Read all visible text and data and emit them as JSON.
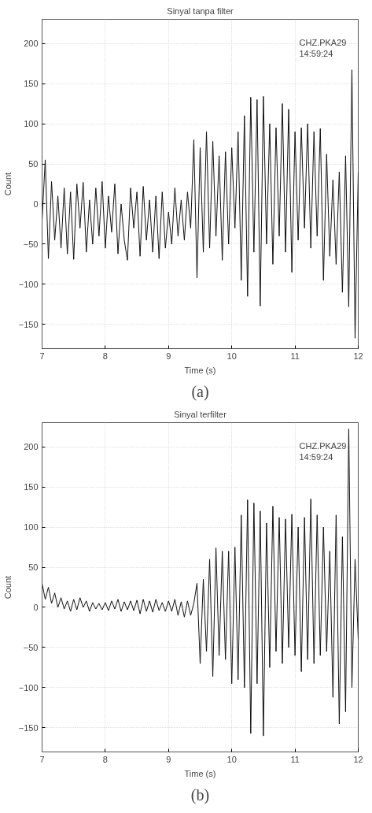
{
  "chart_data": [
    {
      "type": "line",
      "title": "Sinyal tanpa filter",
      "xlabel": "Time (s)",
      "ylabel": "Count",
      "annotations": [
        "CHZ.PKA29\n14:59:24",
        "(a)"
      ],
      "x": [
        7.0,
        7.05,
        7.1,
        7.15,
        7.2,
        7.25,
        7.3,
        7.35,
        7.4,
        7.45,
        7.5,
        7.55,
        7.6,
        7.65,
        7.7,
        7.75,
        7.8,
        7.85,
        7.9,
        7.95,
        8.0,
        8.05,
        8.1,
        8.15,
        8.2,
        8.25,
        8.3,
        8.35,
        8.4,
        8.45,
        8.5,
        8.55,
        8.6,
        8.65,
        8.7,
        8.75,
        8.8,
        8.85,
        8.9,
        8.95,
        9.0,
        9.05,
        9.1,
        9.15,
        9.2,
        9.25,
        9.3,
        9.35,
        9.4,
        9.45,
        9.5,
        9.55,
        9.6,
        9.65,
        9.7,
        9.75,
        9.8,
        9.85,
        9.9,
        9.95,
        10.0,
        10.05,
        10.1,
        10.15,
        10.2,
        10.25,
        10.3,
        10.35,
        10.4,
        10.45,
        10.5,
        10.55,
        10.6,
        10.65,
        10.7,
        10.75,
        10.8,
        10.85,
        10.9,
        10.95,
        11.0,
        11.05,
        11.1,
        11.15,
        11.2,
        11.25,
        11.3,
        11.35,
        11.4,
        11.45,
        11.5,
        11.55,
        11.6,
        11.65,
        11.7,
        11.75,
        11.8,
        11.85,
        11.9,
        11.95,
        12.0
      ],
      "series": [
        {
          "color": "#111111",
          "values": [
            -20,
            55,
            -68,
            28,
            -45,
            10,
            -55,
            20,
            -62,
            15,
            -69,
            25,
            -30,
            27,
            -60,
            5,
            -50,
            20,
            -40,
            28,
            -55,
            10,
            -35,
            25,
            -62,
            0,
            -45,
            -70,
            20,
            -30,
            15,
            -65,
            22,
            -45,
            5,
            -60,
            10,
            -68,
            15,
            -55,
            -10,
            -50,
            20,
            -40,
            5,
            -45,
            15,
            -30,
            80,
            -92,
            70,
            -60,
            90,
            -55,
            78,
            -40,
            60,
            -70,
            65,
            -50,
            70,
            -30,
            90,
            -95,
            110,
            -115,
            133,
            -60,
            130,
            -127,
            134,
            -50,
            100,
            -75,
            95,
            -40,
            125,
            -60,
            118,
            -85,
            90,
            -45,
            95,
            -30,
            100,
            -55,
            90,
            -40,
            94,
            -95,
            62,
            -65,
            30,
            -75,
            40,
            -110,
            60,
            -128,
            167,
            -167,
            40
          ]
        }
      ],
      "xlim": [
        7,
        12
      ],
      "ylim": [
        -180,
        230
      ],
      "xticks": [
        7,
        8,
        9,
        10,
        11,
        12
      ],
      "yticks": [
        -150,
        -100,
        -50,
        0,
        50,
        100,
        150,
        200
      ],
      "grid": true
    },
    {
      "type": "line",
      "title": "Sinyal terfilter",
      "xlabel": "Time (s)",
      "ylabel": "Count",
      "annotations": [
        "CHZ.PKA29\n14:59:24",
        "(b)"
      ],
      "x": [
        7.0,
        7.05,
        7.1,
        7.15,
        7.2,
        7.25,
        7.3,
        7.35,
        7.4,
        7.45,
        7.5,
        7.55,
        7.6,
        7.65,
        7.7,
        7.75,
        7.8,
        7.85,
        7.9,
        7.95,
        8.0,
        8.05,
        8.1,
        8.15,
        8.2,
        8.25,
        8.3,
        8.35,
        8.4,
        8.45,
        8.5,
        8.55,
        8.6,
        8.65,
        8.7,
        8.75,
        8.8,
        8.85,
        8.9,
        8.95,
        9.0,
        9.05,
        9.1,
        9.15,
        9.2,
        9.25,
        9.3,
        9.35,
        9.4,
        9.45,
        9.5,
        9.55,
        9.6,
        9.65,
        9.7,
        9.75,
        9.8,
        9.85,
        9.9,
        9.95,
        10.0,
        10.05,
        10.1,
        10.15,
        10.2,
        10.25,
        10.3,
        10.35,
        10.4,
        10.45,
        10.5,
        10.55,
        10.6,
        10.65,
        10.7,
        10.75,
        10.8,
        10.85,
        10.9,
        10.95,
        11.0,
        11.05,
        11.1,
        11.15,
        11.2,
        11.25,
        11.3,
        11.35,
        11.4,
        11.45,
        11.5,
        11.55,
        11.6,
        11.65,
        11.7,
        11.75,
        11.8,
        11.85,
        11.9,
        11.95,
        12.0
      ],
      "series": [
        {
          "color": "#111111",
          "values": [
            30,
            10,
            25,
            5,
            18,
            0,
            12,
            -2,
            8,
            -5,
            10,
            -3,
            12,
            0,
            8,
            -5,
            6,
            -2,
            5,
            -3,
            6,
            -4,
            8,
            -2,
            10,
            -5,
            7,
            -3,
            8,
            -4,
            9,
            -8,
            10,
            -5,
            8,
            -6,
            10,
            -4,
            6,
            -5,
            8,
            -5,
            10,
            -10,
            7,
            -12,
            8,
            -10,
            5,
            30,
            -70,
            35,
            -55,
            60,
            -86,
            74,
            -60,
            70,
            -65,
            70,
            -95,
            75,
            -90,
            115,
            -100,
            134,
            -157,
            130,
            -95,
            120,
            -160,
            105,
            -75,
            126,
            -55,
            112,
            -70,
            110,
            -50,
            116,
            -60,
            100,
            -80,
            112,
            -65,
            135,
            -70,
            115,
            -60,
            100,
            -55,
            70,
            -112,
            115,
            -145,
            88,
            -130,
            222,
            -100,
            60,
            -40
          ]
        }
      ],
      "xlim": [
        7,
        12
      ],
      "ylim": [
        -180,
        230
      ],
      "xticks": [
        7,
        8,
        9,
        10,
        11,
        12
      ],
      "yticks": [
        -150,
        -100,
        -50,
        0,
        50,
        100,
        150,
        200
      ],
      "grid": true
    }
  ]
}
